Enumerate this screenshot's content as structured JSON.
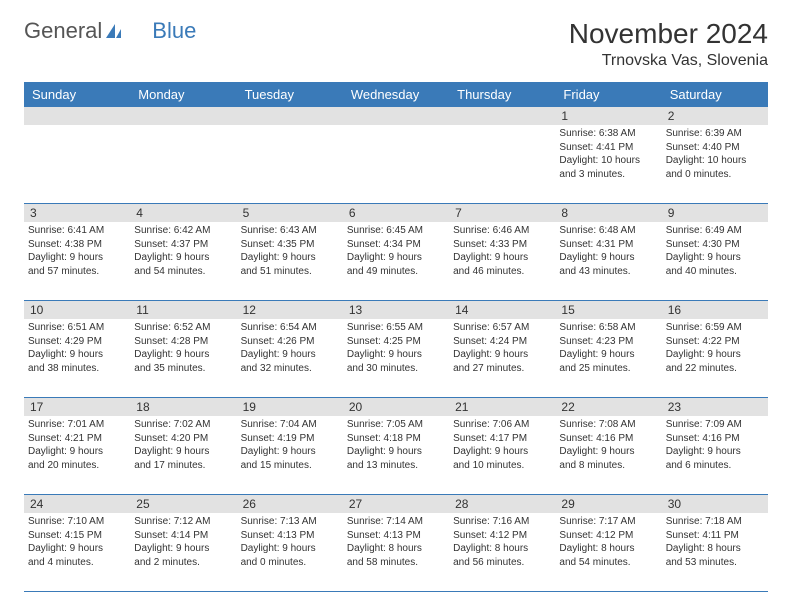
{
  "logo": {
    "part1": "General",
    "part2": "Blue"
  },
  "title": "November 2024",
  "location": "Trnovska Vas, Slovenia",
  "day_names": [
    "Sunday",
    "Monday",
    "Tuesday",
    "Wednesday",
    "Thursday",
    "Friday",
    "Saturday"
  ],
  "colors": {
    "header_bg": "#3a7ab8",
    "header_text": "#ffffff",
    "numrow_bg": "#e2e2e2",
    "border": "#3a7ab8",
    "text": "#333333",
    "background": "#ffffff"
  },
  "weeks": [
    [
      {
        "num": "",
        "lines": []
      },
      {
        "num": "",
        "lines": []
      },
      {
        "num": "",
        "lines": []
      },
      {
        "num": "",
        "lines": []
      },
      {
        "num": "",
        "lines": []
      },
      {
        "num": "1",
        "lines": [
          "Sunrise: 6:38 AM",
          "Sunset: 4:41 PM",
          "Daylight: 10 hours",
          "and 3 minutes."
        ]
      },
      {
        "num": "2",
        "lines": [
          "Sunrise: 6:39 AM",
          "Sunset: 4:40 PM",
          "Daylight: 10 hours",
          "and 0 minutes."
        ]
      }
    ],
    [
      {
        "num": "3",
        "lines": [
          "Sunrise: 6:41 AM",
          "Sunset: 4:38 PM",
          "Daylight: 9 hours",
          "and 57 minutes."
        ]
      },
      {
        "num": "4",
        "lines": [
          "Sunrise: 6:42 AM",
          "Sunset: 4:37 PM",
          "Daylight: 9 hours",
          "and 54 minutes."
        ]
      },
      {
        "num": "5",
        "lines": [
          "Sunrise: 6:43 AM",
          "Sunset: 4:35 PM",
          "Daylight: 9 hours",
          "and 51 minutes."
        ]
      },
      {
        "num": "6",
        "lines": [
          "Sunrise: 6:45 AM",
          "Sunset: 4:34 PM",
          "Daylight: 9 hours",
          "and 49 minutes."
        ]
      },
      {
        "num": "7",
        "lines": [
          "Sunrise: 6:46 AM",
          "Sunset: 4:33 PM",
          "Daylight: 9 hours",
          "and 46 minutes."
        ]
      },
      {
        "num": "8",
        "lines": [
          "Sunrise: 6:48 AM",
          "Sunset: 4:31 PM",
          "Daylight: 9 hours",
          "and 43 minutes."
        ]
      },
      {
        "num": "9",
        "lines": [
          "Sunrise: 6:49 AM",
          "Sunset: 4:30 PM",
          "Daylight: 9 hours",
          "and 40 minutes."
        ]
      }
    ],
    [
      {
        "num": "10",
        "lines": [
          "Sunrise: 6:51 AM",
          "Sunset: 4:29 PM",
          "Daylight: 9 hours",
          "and 38 minutes."
        ]
      },
      {
        "num": "11",
        "lines": [
          "Sunrise: 6:52 AM",
          "Sunset: 4:28 PM",
          "Daylight: 9 hours",
          "and 35 minutes."
        ]
      },
      {
        "num": "12",
        "lines": [
          "Sunrise: 6:54 AM",
          "Sunset: 4:26 PM",
          "Daylight: 9 hours",
          "and 32 minutes."
        ]
      },
      {
        "num": "13",
        "lines": [
          "Sunrise: 6:55 AM",
          "Sunset: 4:25 PM",
          "Daylight: 9 hours",
          "and 30 minutes."
        ]
      },
      {
        "num": "14",
        "lines": [
          "Sunrise: 6:57 AM",
          "Sunset: 4:24 PM",
          "Daylight: 9 hours",
          "and 27 minutes."
        ]
      },
      {
        "num": "15",
        "lines": [
          "Sunrise: 6:58 AM",
          "Sunset: 4:23 PM",
          "Daylight: 9 hours",
          "and 25 minutes."
        ]
      },
      {
        "num": "16",
        "lines": [
          "Sunrise: 6:59 AM",
          "Sunset: 4:22 PM",
          "Daylight: 9 hours",
          "and 22 minutes."
        ]
      }
    ],
    [
      {
        "num": "17",
        "lines": [
          "Sunrise: 7:01 AM",
          "Sunset: 4:21 PM",
          "Daylight: 9 hours",
          "and 20 minutes."
        ]
      },
      {
        "num": "18",
        "lines": [
          "Sunrise: 7:02 AM",
          "Sunset: 4:20 PM",
          "Daylight: 9 hours",
          "and 17 minutes."
        ]
      },
      {
        "num": "19",
        "lines": [
          "Sunrise: 7:04 AM",
          "Sunset: 4:19 PM",
          "Daylight: 9 hours",
          "and 15 minutes."
        ]
      },
      {
        "num": "20",
        "lines": [
          "Sunrise: 7:05 AM",
          "Sunset: 4:18 PM",
          "Daylight: 9 hours",
          "and 13 minutes."
        ]
      },
      {
        "num": "21",
        "lines": [
          "Sunrise: 7:06 AM",
          "Sunset: 4:17 PM",
          "Daylight: 9 hours",
          "and 10 minutes."
        ]
      },
      {
        "num": "22",
        "lines": [
          "Sunrise: 7:08 AM",
          "Sunset: 4:16 PM",
          "Daylight: 9 hours",
          "and 8 minutes."
        ]
      },
      {
        "num": "23",
        "lines": [
          "Sunrise: 7:09 AM",
          "Sunset: 4:16 PM",
          "Daylight: 9 hours",
          "and 6 minutes."
        ]
      }
    ],
    [
      {
        "num": "24",
        "lines": [
          "Sunrise: 7:10 AM",
          "Sunset: 4:15 PM",
          "Daylight: 9 hours",
          "and 4 minutes."
        ]
      },
      {
        "num": "25",
        "lines": [
          "Sunrise: 7:12 AM",
          "Sunset: 4:14 PM",
          "Daylight: 9 hours",
          "and 2 minutes."
        ]
      },
      {
        "num": "26",
        "lines": [
          "Sunrise: 7:13 AM",
          "Sunset: 4:13 PM",
          "Daylight: 9 hours",
          "and 0 minutes."
        ]
      },
      {
        "num": "27",
        "lines": [
          "Sunrise: 7:14 AM",
          "Sunset: 4:13 PM",
          "Daylight: 8 hours",
          "and 58 minutes."
        ]
      },
      {
        "num": "28",
        "lines": [
          "Sunrise: 7:16 AM",
          "Sunset: 4:12 PM",
          "Daylight: 8 hours",
          "and 56 minutes."
        ]
      },
      {
        "num": "29",
        "lines": [
          "Sunrise: 7:17 AM",
          "Sunset: 4:12 PM",
          "Daylight: 8 hours",
          "and 54 minutes."
        ]
      },
      {
        "num": "30",
        "lines": [
          "Sunrise: 7:18 AM",
          "Sunset: 4:11 PM",
          "Daylight: 8 hours",
          "and 53 minutes."
        ]
      }
    ]
  ]
}
